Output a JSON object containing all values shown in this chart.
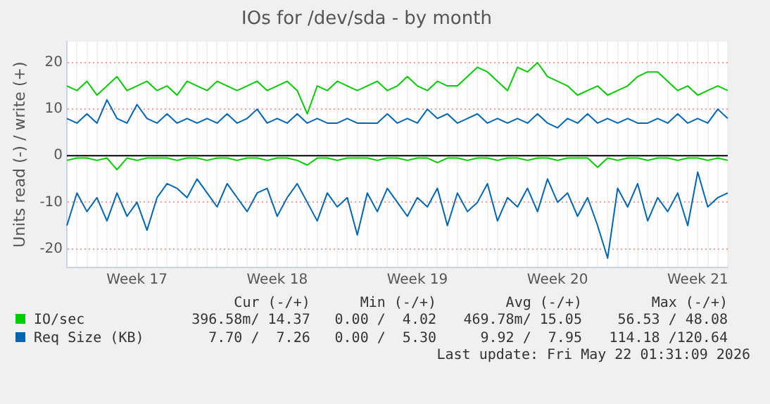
{
  "chart_data": {
    "type": "line",
    "title": "IOs for /dev/sda - by month",
    "ylabel": "Units read (-) / write (+)",
    "categories": [
      null,
      null,
      null,
      null,
      null,
      null,
      null,
      "Week 17",
      null,
      null,
      null,
      null,
      null,
      null,
      null,
      null,
      null,
      null,
      null,
      null,
      null,
      "Week 18",
      null,
      null,
      null,
      null,
      null,
      null,
      null,
      null,
      null,
      null,
      null,
      null,
      null,
      "Week 19",
      null,
      null,
      null,
      null,
      null,
      null,
      null,
      null,
      null,
      null,
      null,
      null,
      null,
      "Week 20",
      null,
      null,
      null,
      null,
      null,
      null,
      null,
      null,
      null,
      null,
      null,
      null,
      null,
      "Week 21",
      null,
      null,
      null
    ],
    "ylim": [
      -24,
      24.5
    ],
    "yticks": [
      -20,
      -10,
      0,
      10,
      20
    ],
    "grid": true,
    "legend": "bottom",
    "marker": "none",
    "ref_lines": [
      {
        "axis": "y",
        "value": 0,
        "color": "#000000"
      }
    ],
    "series": [
      {
        "name": "IO/sec",
        "color": "#00cc00",
        "values": [
          15,
          14,
          16,
          13,
          15,
          17,
          14,
          15,
          16,
          14,
          15,
          13,
          16,
          15,
          14,
          16,
          15,
          14,
          15,
          16,
          14,
          15,
          16,
          14,
          9,
          15,
          14,
          16,
          15,
          14,
          15,
          16,
          14,
          15,
          17,
          15,
          14,
          16,
          15,
          15,
          17,
          19,
          18,
          16,
          14,
          19,
          18,
          20,
          17,
          16,
          15,
          13,
          14,
          15,
          13,
          14,
          15,
          17,
          18,
          18,
          16,
          14,
          15,
          13,
          14,
          15,
          14
        ]
      },
      {
        "name": "Req Size (KB)",
        "color": "#0066b3",
        "values": [
          8,
          7,
          9,
          7,
          12,
          8,
          7,
          11,
          8,
          7,
          9,
          7,
          8,
          7,
          8,
          7,
          9,
          7,
          8,
          10,
          7,
          8,
          7,
          9,
          7,
          8,
          7,
          7,
          8,
          7,
          7,
          7,
          9,
          7,
          8,
          7,
          10,
          8,
          9,
          7,
          8,
          9,
          7,
          8,
          7,
          8,
          7,
          9,
          7,
          6,
          8,
          7,
          9,
          7,
          8,
          7,
          8,
          7,
          7,
          8,
          7,
          9,
          7,
          8,
          7,
          10,
          8
        ]
      },
      {
        "color": "#00cc00",
        "values": [
          -1,
          -0.5,
          -0.5,
          -1,
          -0.5,
          -3,
          -0.5,
          -1,
          -0.5,
          -0.5,
          -0.5,
          -1,
          -0.5,
          -0.5,
          -1,
          -0.5,
          -0.5,
          -1,
          -0.5,
          -0.5,
          -1,
          -0.5,
          -0.5,
          -1,
          -2,
          -0.5,
          -0.5,
          -1,
          -0.5,
          -0.5,
          -0.5,
          -1,
          -0.5,
          -0.5,
          -1,
          -0.5,
          -0.5,
          -1.5,
          -0.5,
          -0.5,
          -1,
          -0.5,
          -0.5,
          -1,
          -0.5,
          -0.5,
          -1,
          -0.5,
          -0.5,
          -1,
          -0.5,
          -0.5,
          -0.5,
          -2.5,
          -0.5,
          -1,
          -0.5,
          -0.5,
          -1,
          -0.5,
          -0.5,
          -1,
          -0.5,
          -0.5,
          -1,
          -0.5,
          -1
        ]
      },
      {
        "color": "#0066b3",
        "values": [
          -15,
          -8,
          -12,
          -9,
          -14,
          -8,
          -13,
          -10,
          -16,
          -9,
          -6,
          -7,
          -9,
          -5,
          -8,
          -11,
          -6,
          -9,
          -12,
          -8,
          -7,
          -13,
          -9,
          -6,
          -10,
          -14,
          -8,
          -11,
          -9,
          -17,
          -8,
          -12,
          -7,
          -10,
          -13,
          -9,
          -11,
          -7,
          -15,
          -8,
          -12,
          -10,
          -6,
          -14,
          -9,
          -11,
          -7,
          -12,
          -5,
          -10,
          -8,
          -13,
          -9,
          -15,
          -22,
          -7,
          -11,
          -6,
          -14,
          -9,
          -12,
          -8,
          -15,
          -3.5,
          -11,
          -9,
          -8
        ]
      }
    ],
    "annotations": [
      "Cur (-/+)",
      "Min (-/+)",
      "Avg (-/+)",
      "Max (-/+)",
      "396.58m/ 14.37",
      "0.00 /  4.02",
      "469.78m/ 15.05",
      "56.53 / 48.08",
      "7.70 /  7.26",
      "0.00 /  5.30",
      "9.92 /  7.95",
      "114.18 /120.64",
      "Last update: Fri May 22 01:31:09 2026"
    ]
  }
}
